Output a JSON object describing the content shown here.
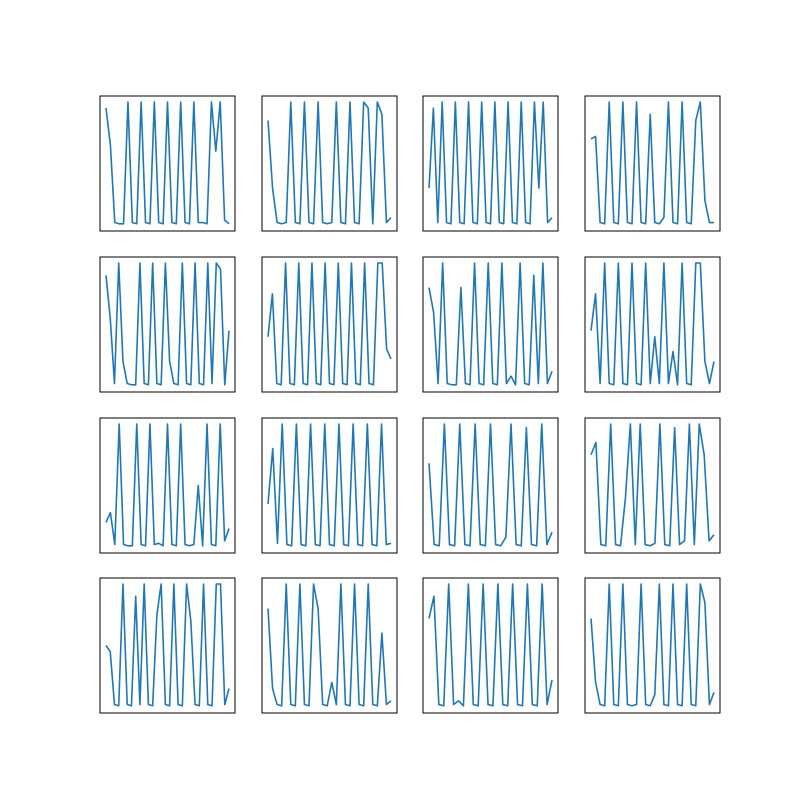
{
  "figure": {
    "background": "#ffffff",
    "line_color": "#1f77b4",
    "frame_color": "#000000"
  },
  "chart_data": [
    {
      "type": "line",
      "grid": false,
      "xlim": [
        0,
        24
      ],
      "ylim": [
        0,
        1
      ],
      "series": [
        {
          "values": [
            0.95,
            0.65,
            0.02,
            0.01,
            0.01,
            1.0,
            0.02,
            0.01,
            1.0,
            0.02,
            0.01,
            1.0,
            0.02,
            0.01,
            1.0,
            0.02,
            0.01,
            1.0,
            0.02,
            0.01,
            1.0,
            0.02,
            0.02,
            0.01,
            1.0,
            0.6,
            1.0,
            0.04,
            0.01
          ]
        }
      ]
    },
    {
      "type": "line",
      "grid": false,
      "xlim": [
        0,
        24
      ],
      "ylim": [
        0,
        1
      ],
      "series": [
        {
          "values": [
            0.85,
            0.3,
            0.02,
            0.01,
            0.02,
            1.0,
            0.02,
            0.01,
            1.0,
            0.02,
            0.01,
            1.0,
            0.02,
            0.01,
            0.02,
            1.0,
            0.02,
            0.01,
            1.0,
            0.02,
            0.01,
            1.0,
            0.95,
            0.01,
            1.0,
            0.9,
            0.02,
            0.06
          ]
        }
      ]
    },
    {
      "type": "line",
      "grid": false,
      "xlim": [
        0,
        24
      ],
      "ylim": [
        0,
        1
      ],
      "series": [
        {
          "values": [
            0.3,
            0.95,
            0.02,
            1.0,
            0.02,
            0.01,
            1.0,
            0.02,
            0.01,
            1.0,
            0.02,
            0.01,
            1.0,
            0.02,
            0.01,
            1.0,
            0.02,
            0.01,
            1.0,
            0.02,
            0.01,
            1.0,
            0.02,
            0.01,
            1.0,
            0.3,
            1.0,
            0.02,
            0.06
          ]
        }
      ]
    },
    {
      "type": "line",
      "grid": false,
      "xlim": [
        0,
        24
      ],
      "ylim": [
        0,
        1
      ],
      "series": [
        {
          "values": [
            0.7,
            0.72,
            0.02,
            0.01,
            1.0,
            0.02,
            0.01,
            1.0,
            0.02,
            0.01,
            1.0,
            0.02,
            0.01,
            0.9,
            0.02,
            0.01,
            0.06,
            1.0,
            0.02,
            0.01,
            1.0,
            0.02,
            0.01,
            0.85,
            1.0,
            0.2,
            0.02,
            0.02
          ]
        }
      ]
    },
    {
      "type": "line",
      "grid": false,
      "xlim": [
        0,
        24
      ],
      "ylim": [
        0,
        1
      ],
      "series": [
        {
          "values": [
            0.9,
            0.55,
            0.02,
            1.0,
            0.2,
            0.02,
            0.01,
            0.01,
            1.0,
            0.02,
            0.01,
            1.0,
            0.02,
            0.01,
            1.0,
            0.2,
            0.02,
            0.01,
            1.0,
            0.02,
            0.01,
            1.0,
            0.02,
            0.01,
            1.0,
            0.02,
            1.0,
            0.95,
            0.01,
            0.45
          ]
        }
      ]
    },
    {
      "type": "line",
      "grid": false,
      "xlim": [
        0,
        24
      ],
      "ylim": [
        0,
        1
      ],
      "series": [
        {
          "values": [
            0.4,
            0.75,
            0.02,
            0.01,
            1.0,
            0.02,
            0.01,
            1.0,
            0.02,
            0.01,
            1.0,
            0.02,
            0.01,
            1.0,
            0.02,
            0.01,
            1.0,
            0.02,
            0.01,
            1.0,
            0.02,
            0.01,
            1.0,
            0.02,
            0.01,
            1.0,
            1.0,
            0.3,
            0.22
          ]
        }
      ]
    },
    {
      "type": "line",
      "grid": false,
      "xlim": [
        0,
        24
      ],
      "ylim": [
        0,
        1
      ],
      "series": [
        {
          "values": [
            0.8,
            0.6,
            0.02,
            1.0,
            0.02,
            0.01,
            0.01,
            0.8,
            0.02,
            0.01,
            1.0,
            0.02,
            0.01,
            1.0,
            0.02,
            0.01,
            1.0,
            0.02,
            0.08,
            0.01,
            1.0,
            0.02,
            0.01,
            0.9,
            0.02,
            1.0,
            0.02,
            0.12
          ]
        }
      ]
    },
    {
      "type": "line",
      "grid": false,
      "xlim": [
        0,
        24
      ],
      "ylim": [
        0,
        1
      ],
      "series": [
        {
          "values": [
            0.45,
            0.75,
            0.02,
            1.0,
            0.02,
            0.01,
            1.0,
            0.02,
            0.01,
            1.0,
            0.02,
            0.01,
            1.0,
            0.02,
            0.4,
            0.02,
            1.0,
            0.02,
            0.28,
            0.01,
            1.0,
            0.02,
            0.01,
            1.0,
            1.0,
            0.2,
            0.02,
            0.2
          ]
        }
      ]
    },
    {
      "type": "line",
      "grid": false,
      "xlim": [
        0,
        24
      ],
      "ylim": [
        0,
        1
      ],
      "series": [
        {
          "values": [
            0.2,
            0.28,
            0.02,
            1.0,
            0.02,
            0.01,
            0.01,
            1.0,
            0.02,
            0.01,
            1.0,
            0.02,
            0.03,
            0.01,
            1.0,
            0.02,
            0.01,
            1.0,
            0.02,
            0.01,
            0.02,
            0.5,
            0.01,
            1.0,
            0.02,
            0.01,
            1.0,
            0.05,
            0.15
          ]
        }
      ]
    },
    {
      "type": "line",
      "grid": false,
      "xlim": [
        0,
        24
      ],
      "ylim": [
        0,
        1
      ],
      "series": [
        {
          "values": [
            0.35,
            0.8,
            0.03,
            1.0,
            0.02,
            0.01,
            1.0,
            0.02,
            0.01,
            1.0,
            0.02,
            0.01,
            1.0,
            0.02,
            0.01,
            1.0,
            0.02,
            0.01,
            1.0,
            0.02,
            0.01,
            1.0,
            0.02,
            0.01,
            1.0,
            0.02,
            0.03
          ]
        }
      ]
    },
    {
      "type": "line",
      "grid": false,
      "xlim": [
        0,
        24
      ],
      "ylim": [
        0,
        1
      ],
      "series": [
        {
          "values": [
            0.68,
            0.02,
            0.01,
            1.0,
            0.02,
            0.01,
            1.0,
            0.02,
            0.01,
            1.0,
            0.02,
            0.01,
            1.0,
            0.02,
            0.01,
            0.08,
            1.0,
            0.02,
            0.01,
            0.97,
            0.02,
            0.01,
            1.0,
            0.02,
            0.12
          ]
        }
      ]
    },
    {
      "type": "line",
      "grid": false,
      "xlim": [
        0,
        24
      ],
      "ylim": [
        0,
        1
      ],
      "series": [
        {
          "values": [
            0.75,
            0.85,
            0.02,
            0.01,
            1.0,
            0.02,
            0.01,
            0.4,
            1.0,
            0.02,
            1.0,
            0.02,
            0.01,
            0.03,
            1.0,
            0.02,
            0.01,
            0.97,
            0.02,
            0.05,
            1.0,
            0.02,
            1.0,
            0.75,
            0.05,
            0.1
          ]
        }
      ]
    },
    {
      "type": "line",
      "grid": false,
      "xlim": [
        0,
        24
      ],
      "ylim": [
        0,
        1
      ],
      "series": [
        {
          "values": [
            0.5,
            0.45,
            0.02,
            0.01,
            1.0,
            0.02,
            0.01,
            0.9,
            0.02,
            1.0,
            0.02,
            0.01,
            0.75,
            1.0,
            0.02,
            0.01,
            1.0,
            0.02,
            0.01,
            1.0,
            0.7,
            0.02,
            0.01,
            1.0,
            0.02,
            0.01,
            1.0,
            1.0,
            0.02,
            0.15
          ]
        }
      ]
    },
    {
      "type": "line",
      "grid": false,
      "xlim": [
        0,
        24
      ],
      "ylim": [
        0,
        1
      ],
      "series": [
        {
          "values": [
            0.8,
            0.15,
            0.02,
            0.01,
            1.0,
            0.02,
            0.01,
            1.0,
            0.02,
            0.01,
            1.0,
            0.8,
            0.02,
            0.01,
            0.2,
            0.02,
            1.0,
            0.02,
            0.01,
            1.0,
            0.02,
            0.01,
            1.0,
            0.02,
            0.01,
            0.6,
            0.02,
            0.05
          ]
        }
      ]
    },
    {
      "type": "line",
      "grid": false,
      "xlim": [
        0,
        24
      ],
      "ylim": [
        0,
        1
      ],
      "series": [
        {
          "values": [
            0.72,
            0.9,
            0.02,
            0.01,
            1.0,
            0.02,
            0.05,
            0.01,
            1.0,
            0.02,
            0.01,
            1.0,
            0.02,
            0.01,
            1.0,
            0.02,
            0.01,
            1.0,
            0.02,
            0.01,
            1.0,
            0.02,
            0.01,
            1.0,
            0.02,
            0.22
          ]
        }
      ]
    },
    {
      "type": "line",
      "grid": false,
      "xlim": [
        0,
        24
      ],
      "ylim": [
        0,
        1
      ],
      "series": [
        {
          "values": [
            0.72,
            0.2,
            0.02,
            0.01,
            1.0,
            0.02,
            0.01,
            1.0,
            0.02,
            0.01,
            0.02,
            1.0,
            0.02,
            0.01,
            0.1,
            1.0,
            0.02,
            0.01,
            1.0,
            0.02,
            0.01,
            1.0,
            0.02,
            0.01,
            1.0,
            0.85,
            0.02,
            0.12
          ]
        }
      ]
    }
  ]
}
